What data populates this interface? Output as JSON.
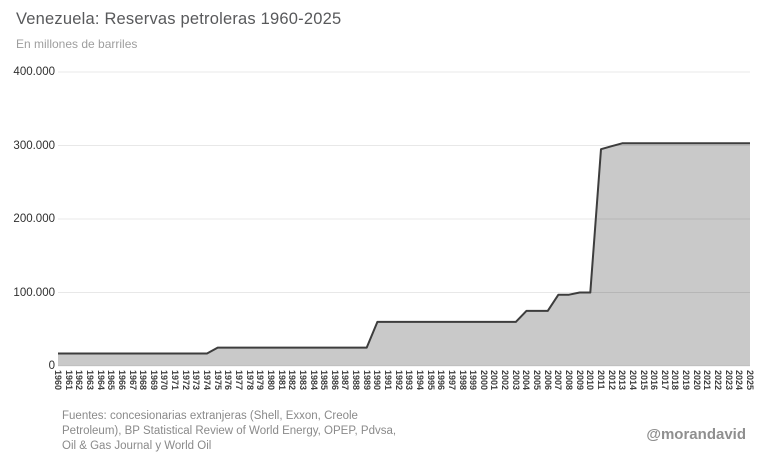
{
  "chart_data": {
    "type": "area",
    "title": "Venezuela: Reservas petroleras 1960-2025",
    "subtitle": "En millones de barriles",
    "x": [
      1960,
      1961,
      1962,
      1963,
      1964,
      1965,
      1966,
      1967,
      1968,
      1969,
      1970,
      1971,
      1972,
      1973,
      1974,
      1975,
      1976,
      1977,
      1978,
      1979,
      1980,
      1981,
      1982,
      1983,
      1984,
      1985,
      1986,
      1987,
      1988,
      1989,
      1990,
      1991,
      1992,
      1993,
      1994,
      1995,
      1996,
      1997,
      1998,
      1999,
      2000,
      2001,
      2002,
      2003,
      2004,
      2005,
      2006,
      2007,
      2008,
      2009,
      2010,
      2011,
      2012,
      2013,
      2014,
      2015,
      2016,
      2017,
      2018,
      2019,
      2020,
      2021,
      2022,
      2023,
      2024,
      2025
    ],
    "values": [
      17000,
      17000,
      17000,
      17000,
      17000,
      17000,
      17000,
      17000,
      17000,
      17000,
      17000,
      17000,
      17000,
      17000,
      17000,
      25000,
      25000,
      25000,
      25000,
      25000,
      25000,
      25000,
      25000,
      25000,
      25000,
      25000,
      25000,
      25000,
      25000,
      25000,
      60000,
      60000,
      60000,
      60000,
      60000,
      60000,
      60000,
      60000,
      60000,
      60000,
      60000,
      60000,
      60000,
      60000,
      75000,
      75000,
      75000,
      97000,
      97000,
      100000,
      100000,
      295000,
      299000,
      303000,
      303000,
      303000,
      303000,
      303000,
      303000,
      303000,
      303000,
      303000,
      303000,
      303000,
      303000,
      303000
    ],
    "ylim": [
      0,
      400000
    ],
    "yticks": [
      {
        "value": 0,
        "label": "0"
      },
      {
        "value": 100000,
        "label": "100.000"
      },
      {
        "value": 200000,
        "label": "200.000"
      },
      {
        "value": 300000,
        "label": "300.000"
      },
      {
        "value": 400000,
        "label": "400.000"
      }
    ],
    "grid": "horizontal",
    "legend": "none",
    "area_fill": "#c9c9c9",
    "line_color": "#3d3d3d",
    "grid_color": "rgba(0,0,0,0.09)"
  },
  "footer": {
    "sources_lines": [
      "Fuentes: concesionarias extranjeras (Shell, Exxon, Creole",
      "Petroleum), BP Statistical Review of World Energy,  OPEP, Pdvsa,",
      "Oil & Gas Journal y World Oil"
    ],
    "credit": "@morandavid"
  }
}
